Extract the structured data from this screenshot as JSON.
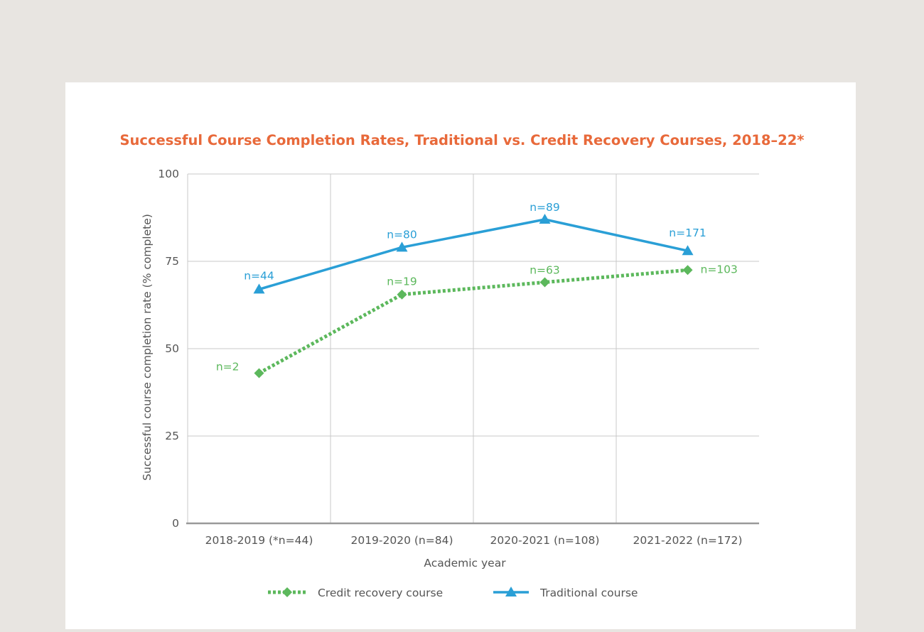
{
  "chart_data": {
    "type": "line",
    "title": "Successful Course Completion Rates, Traditional vs. Credit Recovery Courses, 2018–22*",
    "xlabel": "Academic year",
    "ylabel": "Successful course completion rate (% complete)",
    "ylim": [
      0,
      100
    ],
    "yticks": [
      "0",
      "25",
      "50",
      "75",
      "100"
    ],
    "categories": [
      "2018-2019 (*n=44)",
      "2019-2020 (n=84)",
      "2020-2021 (n=108)",
      "2021-2022 (n=172)"
    ],
    "grid": true,
    "legend_position": "bottom",
    "colors": {
      "title": "#e8693a",
      "traditional": "#2a9fd6",
      "credit": "#5cb85c",
      "axis_text": "#555555",
      "grid": "#c8c8c8"
    },
    "series": [
      {
        "name": "Credit recovery course",
        "values": [
          43,
          65.5,
          69,
          72.5
        ],
        "labels": [
          "n=2",
          "n=19",
          "n=63",
          "n=103"
        ],
        "color": "#5cb85c",
        "marker": "diamond",
        "dash": "dotted"
      },
      {
        "name": "Traditional course",
        "values": [
          67,
          79,
          87,
          78
        ],
        "labels": [
          "n=44",
          "n=80",
          "n=89",
          "n=171"
        ],
        "color": "#2a9fd6",
        "marker": "triangle",
        "dash": "solid"
      }
    ]
  }
}
